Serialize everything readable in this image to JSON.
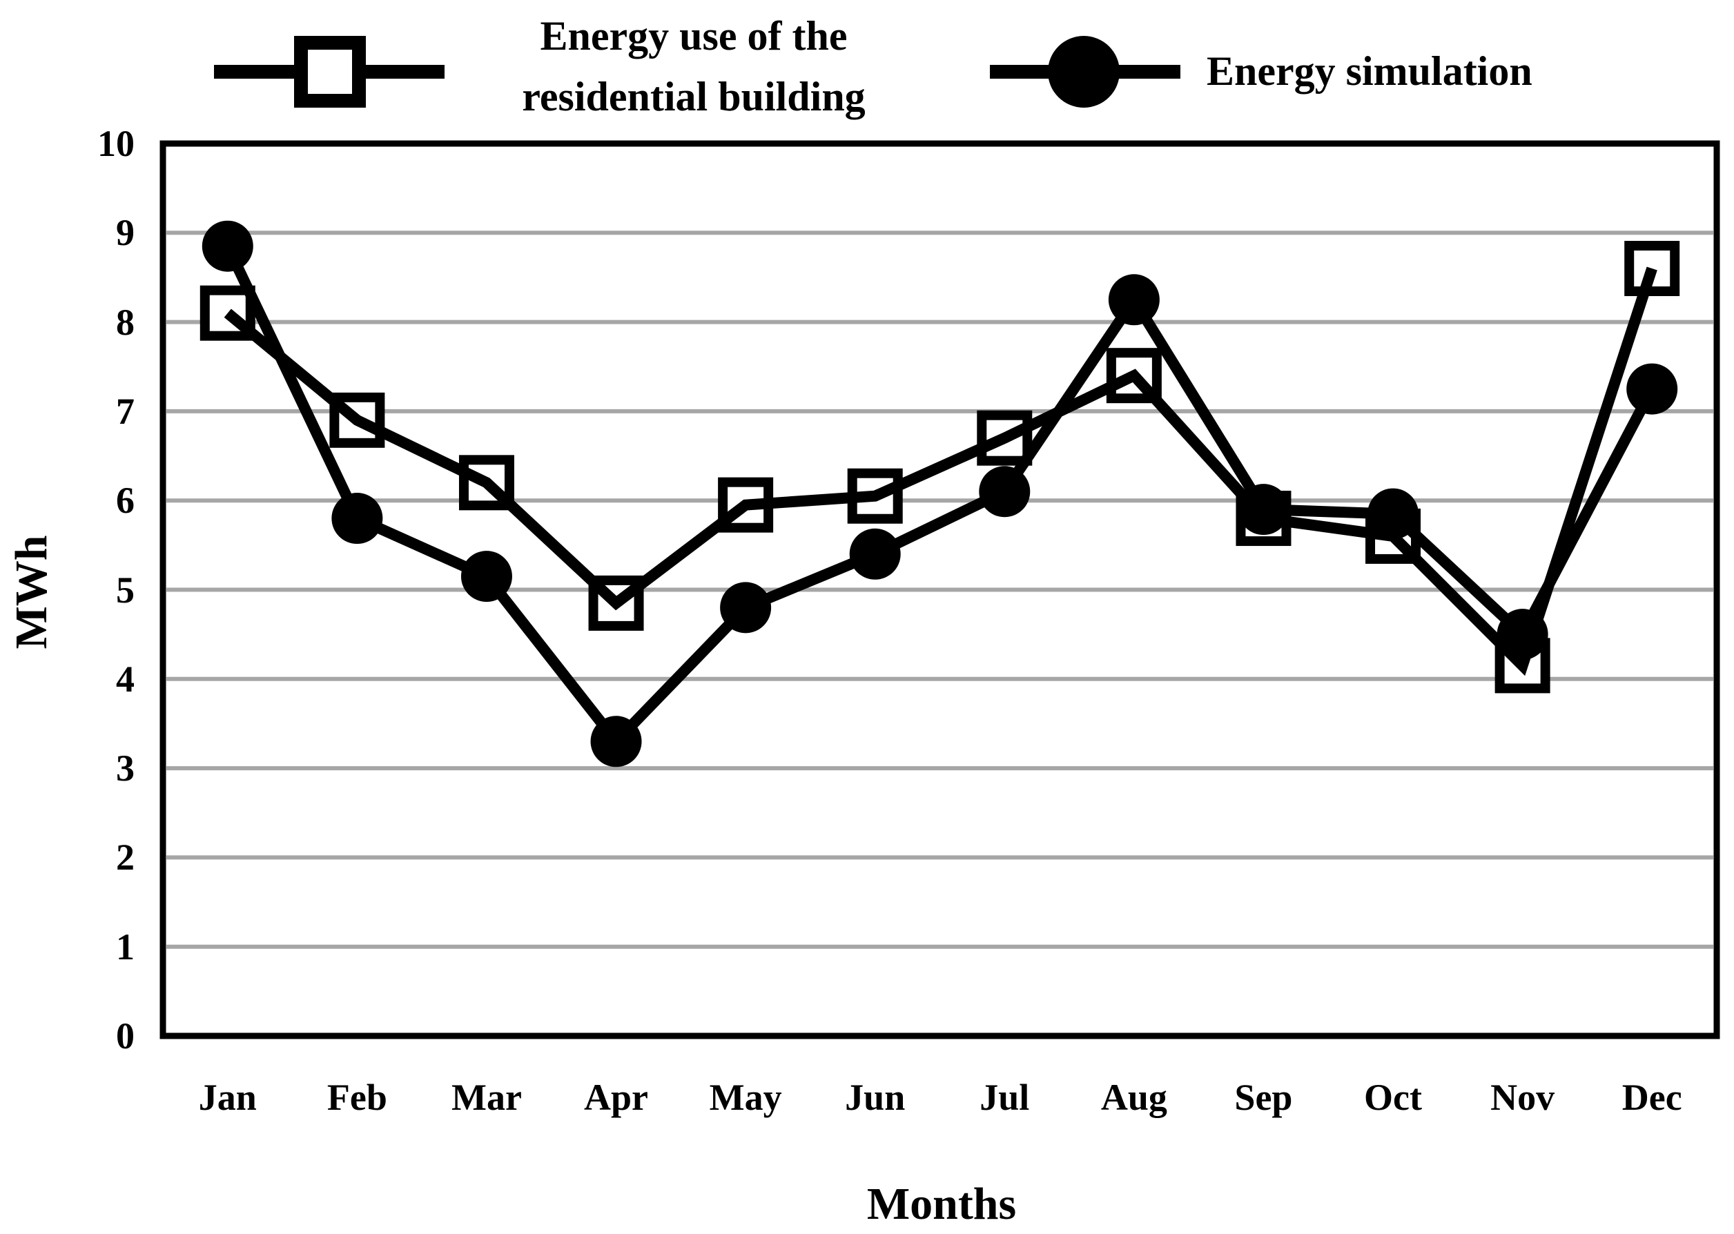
{
  "chart_data": {
    "type": "line",
    "categories": [
      "Jan",
      "Feb",
      "Mar",
      "Apr",
      "May",
      "Jun",
      "Jul",
      "Aug",
      "Sep",
      "Oct",
      "Nov",
      "Dec"
    ],
    "series": [
      {
        "name": "Energy use of the residential building",
        "marker": "open-square",
        "values": [
          8.1,
          6.9,
          6.2,
          4.85,
          5.95,
          6.05,
          6.7,
          7.4,
          5.8,
          5.6,
          4.15,
          8.6
        ]
      },
      {
        "name": "Energy simulation",
        "marker": "filled-circle",
        "values": [
          8.85,
          5.8,
          5.15,
          3.3,
          4.8,
          5.4,
          6.1,
          8.25,
          5.9,
          5.85,
          4.5,
          7.25
        ]
      }
    ],
    "xlabel": "Months",
    "ylabel": "MWh",
    "ylim": [
      0,
      10
    ],
    "yticks": [
      0,
      1,
      2,
      3,
      4,
      5,
      6,
      7,
      8,
      9,
      10
    ],
    "grid": "horizontal-only",
    "legend_position": "top",
    "colors": {
      "series": "#000000",
      "gridline": "#a6a6a6",
      "border": "#000000",
      "background": "#ffffff"
    }
  }
}
